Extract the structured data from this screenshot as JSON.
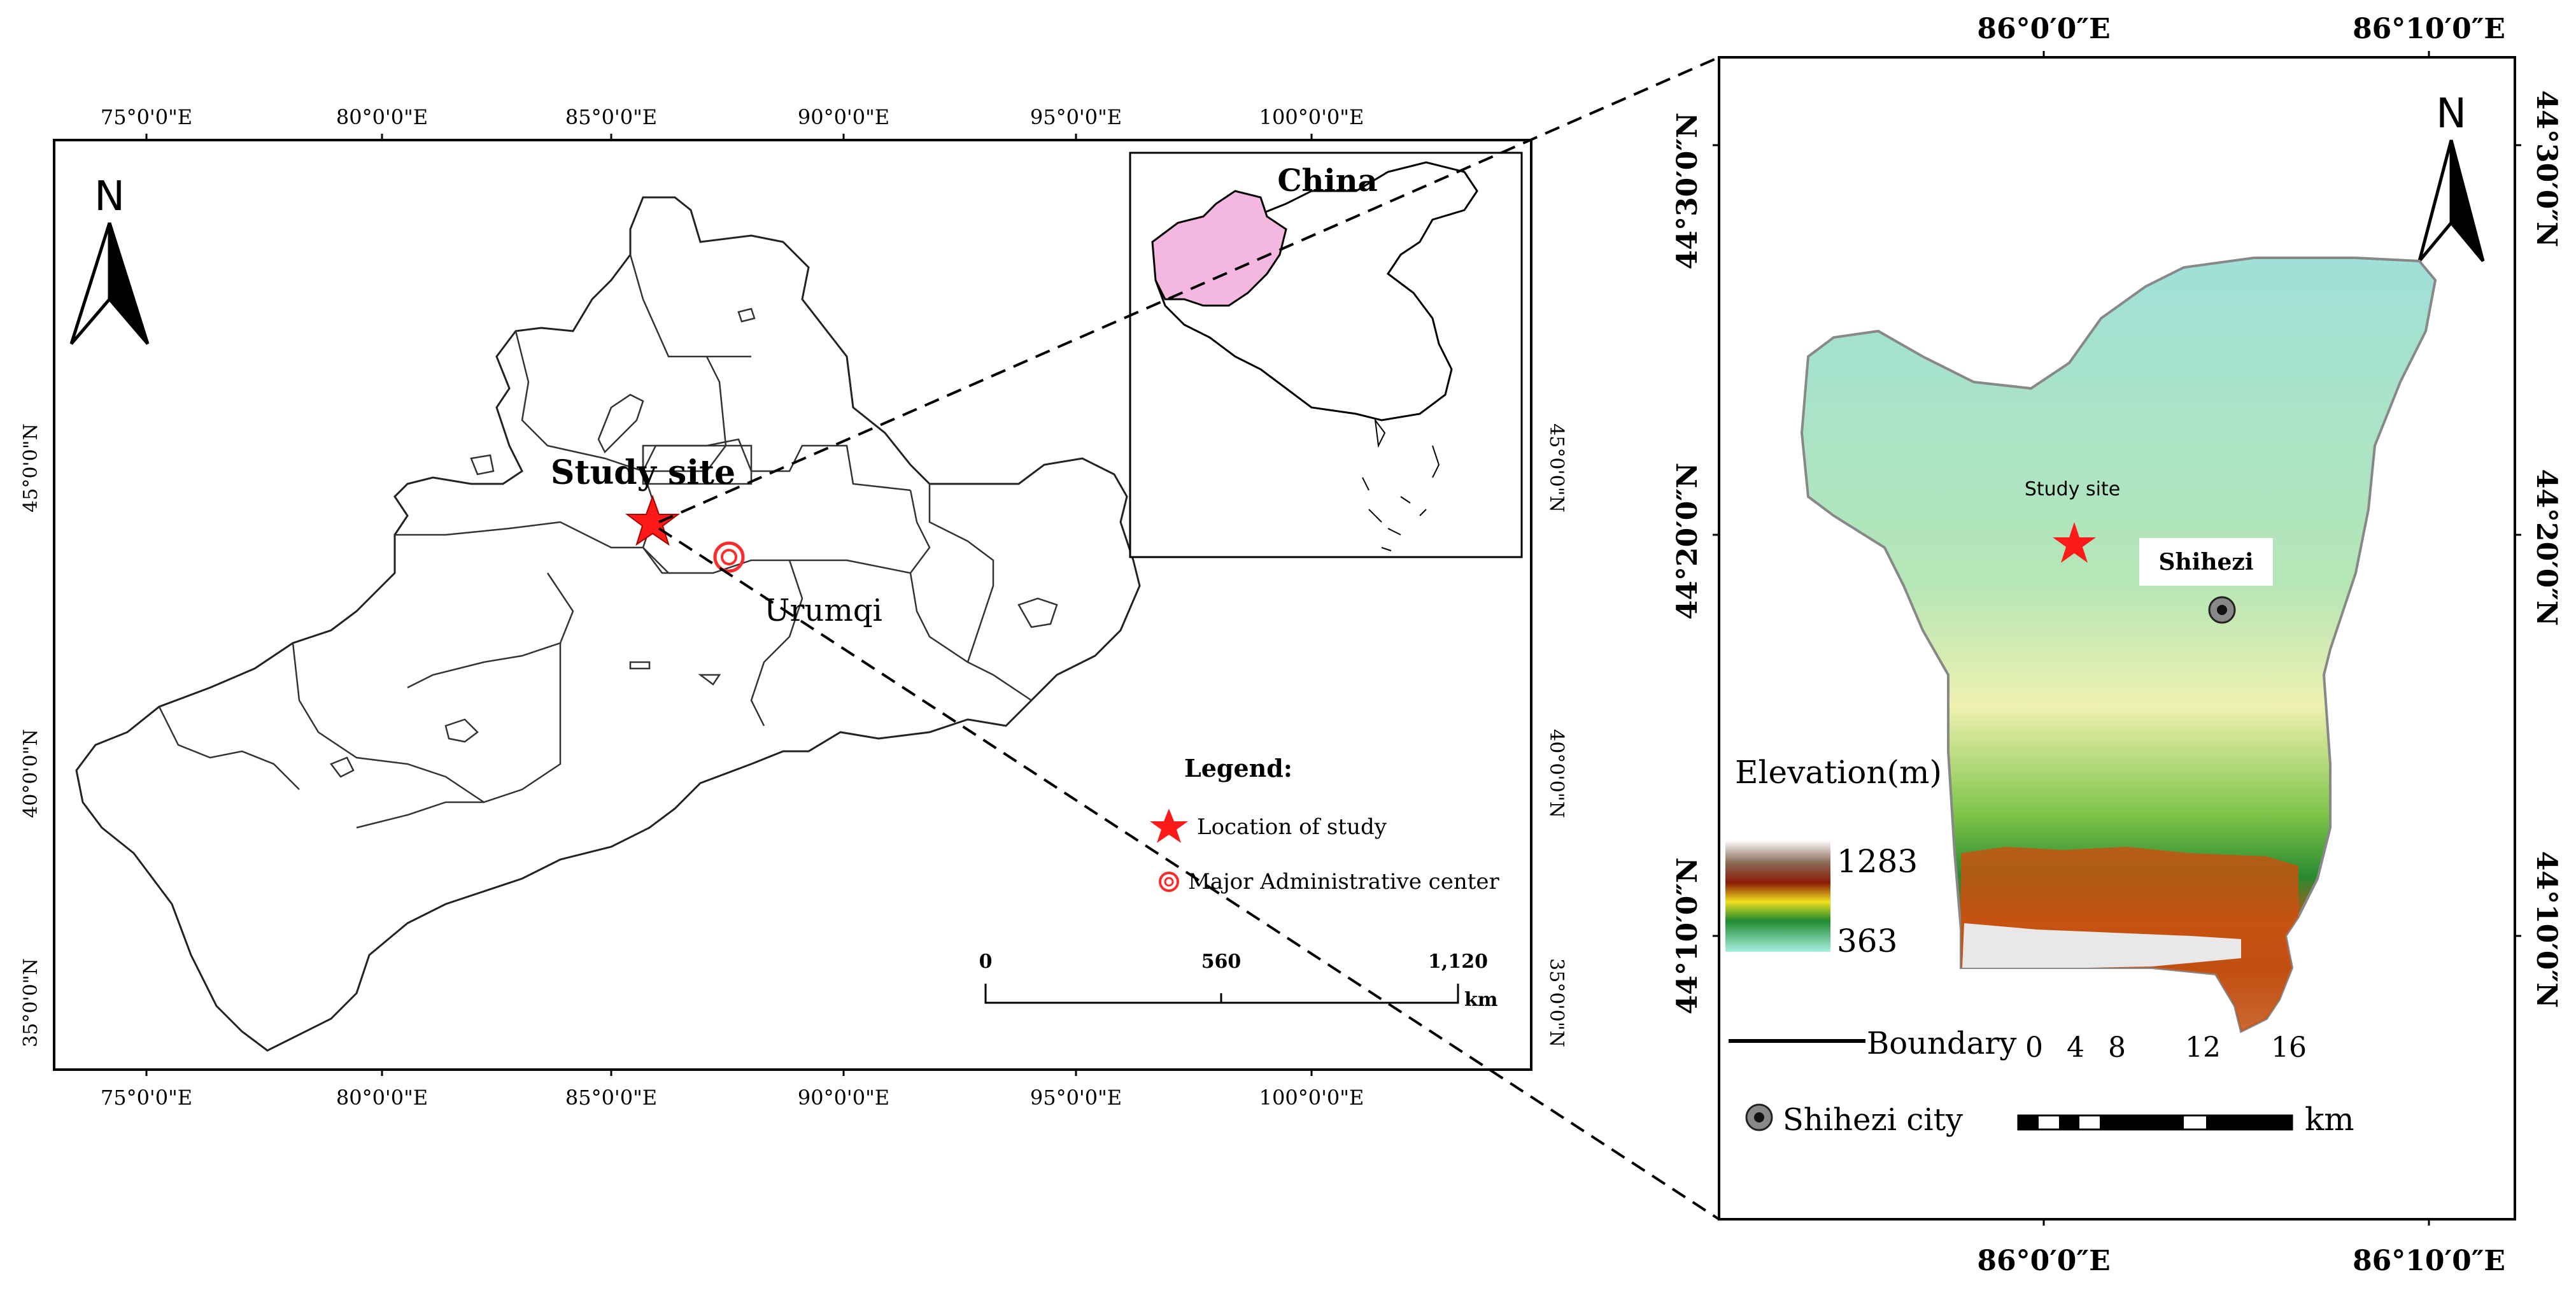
{
  "left_map": {
    "top_ticks": [
      "75°0'0\"E",
      "80°0'0\"E",
      "85°0'0\"E",
      "90°0'0\"E",
      "95°0'0\"E",
      "100°0'0\"E"
    ],
    "bottom_ticks": [
      "75°0'0\"E",
      "80°0'0\"E",
      "85°0'0\"E",
      "90°0'0\"E",
      "95°0'0\"E",
      "100°0'0\"E"
    ],
    "left_ticks": [
      "45°0'0\"N",
      "40°0'0\"N",
      "35°0'0\"N"
    ],
    "right_ticks": [
      "45°0'0\"N",
      "40°0'0\"N",
      "35°0'0\"N"
    ],
    "north_label": "N",
    "study_site_label": "Study site",
    "city_label": "Urumqi",
    "inset": {
      "label": "China"
    },
    "legend": {
      "title": "Legend:",
      "item_star": "Location of study",
      "item_center": "Major Administrative center"
    },
    "scalebar": {
      "t0": "0",
      "t1": "560",
      "t2": "1,120",
      "unit": "km"
    }
  },
  "right_map": {
    "top_ticks": [
      "86°0′0″E",
      "86°10′0″E"
    ],
    "bottom_ticks": [
      "86°0′0″E",
      "86°10′0″E"
    ],
    "left_ticks": [
      "44°30′0″N",
      "44°20′0″N",
      "44°10′0″N"
    ],
    "right_ticks": [
      "44°30′0″N",
      "44°20′0″N",
      "44°10′0″N"
    ],
    "north_label": "N",
    "study_site_label": "Study site",
    "city_label": "Shihezi",
    "elevation": {
      "title": "Elevation(m)",
      "max": "1283",
      "min": "363"
    },
    "boundary_label": "Boundary",
    "city_legend_label": "Shihezi city",
    "scalebar": {
      "t0": "0",
      "t1": "4",
      "t2": "8",
      "t3": "12",
      "t4": "16",
      "unit": "km"
    }
  },
  "colors": {
    "star": "#ff1a1a",
    "china_highlight": "#f4b8e0",
    "elev_high": "#a8d8c8",
    "elev_mid": "#e9ecb0",
    "elev_low": "#2f8f3a",
    "mountain": "#c94a10"
  }
}
